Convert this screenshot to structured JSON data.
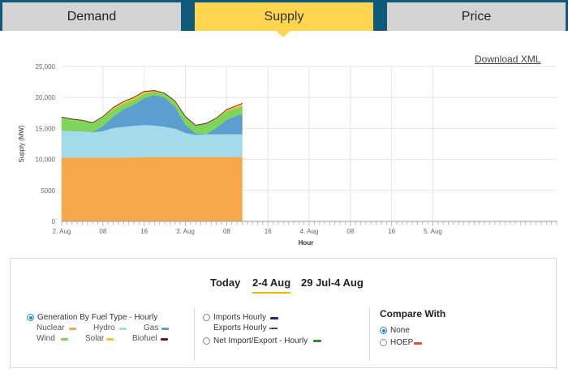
{
  "tabs": [
    {
      "label": "Demand",
      "active": false
    },
    {
      "label": "Supply",
      "active": true
    },
    {
      "label": "Price",
      "active": false
    }
  ],
  "download_label": "Download XML",
  "chart_data": {
    "type": "area",
    "stacked": true,
    "xlabel": "Hour",
    "ylabel": "Supply (MW)",
    "ylim": [
      0,
      25000
    ],
    "yticks": [
      0,
      5000,
      10000,
      15000,
      20000,
      25000
    ],
    "ytick_labels": [
      "0",
      "5000",
      "10,000",
      "15,000",
      "20,000",
      "25,000"
    ],
    "xlim": [
      0,
      96
    ],
    "xtick_labels": [
      {
        "x": 0,
        "label": "2. Aug"
      },
      {
        "x": 8,
        "label": "08"
      },
      {
        "x": 16,
        "label": "16"
      },
      {
        "x": 24,
        "label": "3. Aug"
      },
      {
        "x": 32,
        "label": "08"
      },
      {
        "x": 40,
        "label": "16"
      },
      {
        "x": 48,
        "label": "4. Aug"
      },
      {
        "x": 56,
        "label": "08"
      },
      {
        "x": 64,
        "label": "16"
      },
      {
        "x": 72,
        "label": "5. Aug"
      }
    ],
    "x": [
      0,
      2,
      4,
      6,
      8,
      10,
      12,
      14,
      16,
      18,
      20,
      22,
      24,
      26,
      28,
      30,
      32,
      34,
      35
    ],
    "series": [
      {
        "name": "Nuclear",
        "color": "#f7a84a",
        "values": [
          10300,
          10300,
          10300,
          10300,
          10300,
          10300,
          10300,
          10350,
          10400,
          10400,
          10400,
          10400,
          10400,
          10400,
          10400,
          10400,
          10400,
          10400,
          10400
        ]
      },
      {
        "name": "Hydro",
        "color": "#a3dbea",
        "values": [
          4400,
          4300,
          4300,
          4100,
          4300,
          4800,
          5000,
          5100,
          5200,
          5100,
          4900,
          4600,
          3900,
          3600,
          3700,
          3700,
          3700,
          3700,
          3700
        ]
      },
      {
        "name": "Gas",
        "color": "#5b9fd1",
        "values": [
          0,
          0,
          0,
          0,
          800,
          1800,
          2800,
          3400,
          4300,
          4900,
          4700,
          3500,
          1300,
          200,
          0,
          1000,
          2300,
          3000,
          3200
        ]
      },
      {
        "name": "Wind",
        "color": "#7fd45a",
        "values": [
          2100,
          1900,
          1700,
          1500,
          1400,
          1200,
          900,
          800,
          700,
          500,
          600,
          900,
          1300,
          1300,
          1700,
          1500,
          1400,
          1200,
          1300
        ]
      },
      {
        "name": "Solar",
        "color": "#f5c242",
        "values": [
          0,
          0,
          0,
          0,
          100,
          250,
          320,
          350,
          340,
          200,
          50,
          0,
          0,
          0,
          0,
          50,
          220,
          380,
          420
        ]
      },
      {
        "name": "Biofuel",
        "color": "#6b1a1a",
        "values": [
          40,
          40,
          40,
          40,
          40,
          40,
          40,
          40,
          40,
          40,
          40,
          40,
          40,
          40,
          40,
          40,
          40,
          40,
          40
        ]
      }
    ]
  },
  "ranges": [
    {
      "label": "Today",
      "active": false
    },
    {
      "label": "2-4 Aug",
      "active": true
    },
    {
      "label": "29 Jul-4 Aug",
      "active": false
    }
  ],
  "options": {
    "generation_label": "Generation By Fuel Type - Hourly",
    "fuel_types": [
      {
        "label": "Nuclear",
        "color": "#f7a84a"
      },
      {
        "label": "Hydro",
        "color": "#a3dbea"
      },
      {
        "label": "Gas",
        "color": "#5b9fd1"
      },
      {
        "label": "Wind",
        "color": "#7fd45a"
      },
      {
        "label": "Solar",
        "color": "#f5c242"
      },
      {
        "label": "Biofuel",
        "color": "#6b1a1a"
      }
    ],
    "imports_label": "Imports Hourly",
    "imports_color": "#1f2a7a",
    "exports_label": "Exports Hourly",
    "exports_color": "#1f2a7a",
    "net_label": "Net Import/Export - Hourly",
    "net_color": "#2e8b3a"
  },
  "compare": {
    "title": "Compare With",
    "none_label": "None",
    "hoep_label": "HOEP",
    "hoep_color": "#e0503a"
  }
}
